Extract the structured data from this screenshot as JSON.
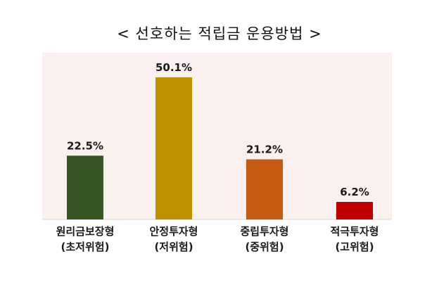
{
  "chart_data": {
    "type": "bar",
    "title": "< 선호하는 적립금 운용방법 >",
    "categories": [
      [
        "원리금보장형",
        "(초저위험)"
      ],
      [
        "안정투자형",
        "(저위험)"
      ],
      [
        "중립투자형",
        "(중위험)"
      ],
      [
        "적극투자형",
        "(고위험)"
      ]
    ],
    "values": [
      22.5,
      50.1,
      21.2,
      6.2
    ],
    "value_labels": [
      "22.5%",
      "50.1%",
      "21.2%",
      "6.2%"
    ],
    "colors": [
      "#375623",
      "#bf9000",
      "#c55a11",
      "#c00000"
    ],
    "plot_background": "#faf0ee",
    "ylim": [
      0,
      50.1
    ],
    "grid": false,
    "legend": "none"
  }
}
